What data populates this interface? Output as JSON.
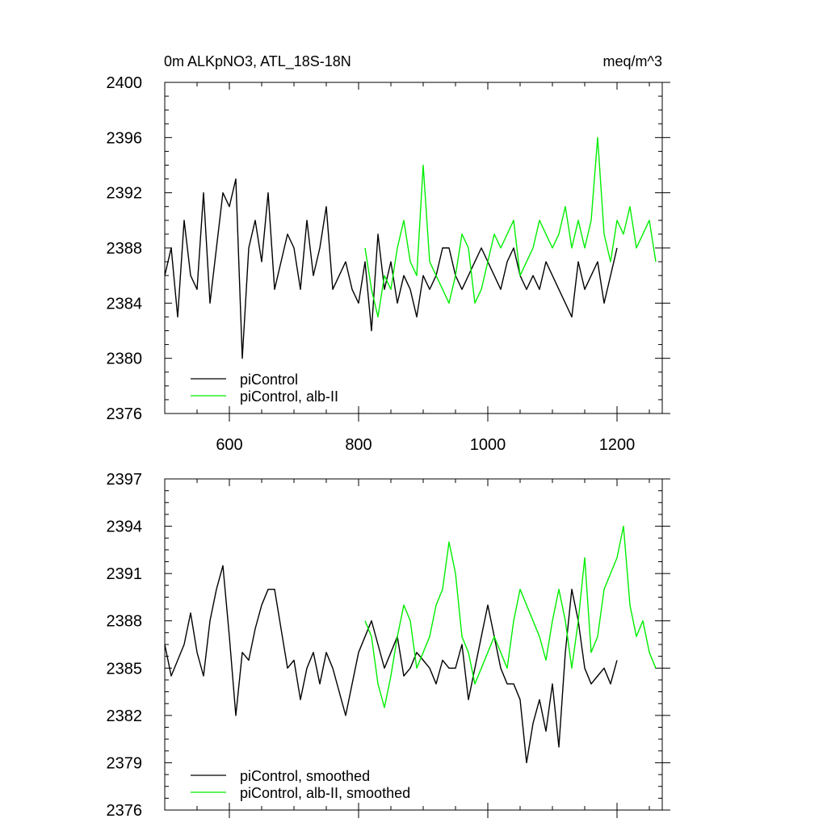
{
  "chart_data": [
    {
      "type": "line",
      "title_left": "0m ALKpNO3, ATL_18S-18N",
      "title_right": "meq/m^3",
      "xlim": [
        500,
        1270
      ],
      "ylim": [
        2376,
        2400
      ],
      "xticks": [
        600,
        800,
        1000,
        1200
      ],
      "xtick_labels": [
        "600",
        "800",
        "1000",
        "1200"
      ],
      "yticks": [
        2376,
        2380,
        2384,
        2388,
        2392,
        2396,
        2400
      ],
      "ytick_labels": [
        "2376",
        "2380",
        "2384",
        "2388",
        "2392",
        "2396",
        "2400"
      ],
      "grid": false,
      "legend_position": "bottom-left",
      "series": [
        {
          "name": "piControl",
          "color": "#000000",
          "x_start": 500,
          "x_step": 10,
          "values": [
            2386,
            2388,
            2383,
            2390,
            2386,
            2385,
            2392,
            2384,
            2388,
            2392,
            2391,
            2393,
            2380,
            2388,
            2390,
            2387,
            2392,
            2385,
            2387,
            2389,
            2388,
            2385,
            2390,
            2386,
            2388,
            2391,
            2385,
            2386,
            2387,
            2385,
            2384,
            2387,
            2382,
            2389,
            2385,
            2387,
            2384,
            2386,
            2385,
            2383,
            2386,
            2385,
            2386,
            2388,
            2388,
            2386,
            2385,
            2386,
            2387,
            2388,
            2387,
            2386,
            2385,
            2387,
            2388,
            2386,
            2385,
            2386,
            2385,
            2387,
            2386,
            2385,
            2384,
            2383,
            2387,
            2385,
            2386,
            2387,
            2384,
            2386,
            2388
          ]
        },
        {
          "name": "piControl, alb-II",
          "color": "#00ee00",
          "x_start": 810,
          "x_step": 10,
          "values": [
            2388,
            2385,
            2383,
            2386,
            2385,
            2388,
            2390,
            2387,
            2386,
            2394,
            2387,
            2386,
            2385,
            2384,
            2386,
            2389,
            2388,
            2384,
            2385,
            2387,
            2389,
            2388,
            2389,
            2390,
            2386,
            2387,
            2388,
            2390,
            2389,
            2388,
            2389,
            2391,
            2388,
            2390,
            2388,
            2390,
            2396,
            2389,
            2387,
            2390,
            2389,
            2391,
            2388,
            2389,
            2390,
            2387
          ]
        }
      ]
    },
    {
      "type": "line",
      "xlim": [
        500,
        1270
      ],
      "ylim": [
        2376,
        2397
      ],
      "xticks": [
        600,
        800,
        1000,
        1200
      ],
      "yticks": [
        2376,
        2379,
        2382,
        2385,
        2388,
        2391,
        2394,
        2397
      ],
      "ytick_labels": [
        "2376",
        "2379",
        "2382",
        "2385",
        "2388",
        "2391",
        "2394",
        "2397"
      ],
      "grid": false,
      "legend_position": "bottom-left",
      "series": [
        {
          "name": "piControl, smoothed",
          "color": "#000000",
          "x_start": 500,
          "x_step": 10,
          "values": [
            2386.5,
            2384.5,
            2385.5,
            2386.5,
            2388.5,
            2386,
            2384.5,
            2388,
            2390,
            2391.5,
            2387,
            2382,
            2386,
            2385.5,
            2387.5,
            2389,
            2390,
            2390,
            2387.5,
            2385,
            2385.5,
            2383,
            2385,
            2386,
            2384,
            2386,
            2385,
            2383.5,
            2382,
            2384,
            2386,
            2387,
            2388,
            2386.5,
            2385,
            2386,
            2387,
            2384.5,
            2385,
            2386,
            2385.5,
            2385,
            2384,
            2385.5,
            2385,
            2385,
            2386.5,
            2383,
            2385,
            2387,
            2389,
            2387,
            2385,
            2384,
            2384,
            2383,
            2379,
            2381.5,
            2383,
            2381,
            2384,
            2380,
            2386,
            2390,
            2388,
            2385,
            2384,
            2384.5,
            2385,
            2384,
            2385.5
          ]
        },
        {
          "name": "piControl, alb-II, smoothed",
          "color": "#00ee00",
          "x_start": 810,
          "x_step": 10,
          "values": [
            2388,
            2387,
            2384,
            2382.5,
            2384.5,
            2387,
            2389,
            2388,
            2385,
            2386,
            2387,
            2389,
            2390,
            2393,
            2391,
            2387,
            2386,
            2384,
            2385,
            2386,
            2387,
            2386,
            2385,
            2388,
            2390,
            2389,
            2388,
            2387,
            2385.5,
            2388,
            2390,
            2388,
            2385,
            2388,
            2392,
            2386,
            2387,
            2390,
            2391,
            2392,
            2394,
            2389,
            2387,
            2388,
            2386,
            2385
          ]
        }
      ]
    }
  ]
}
